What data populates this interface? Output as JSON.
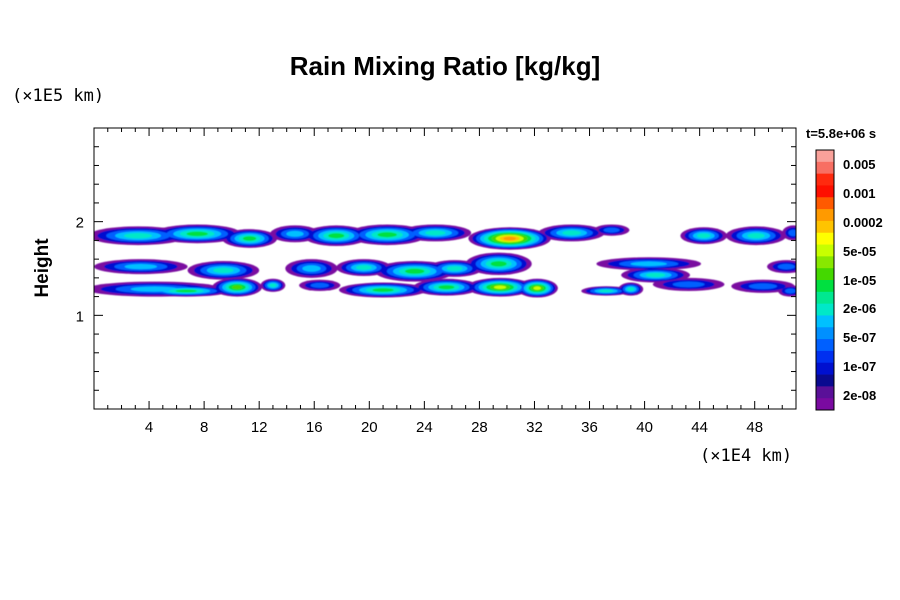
{
  "chart_data": {
    "type": "heatmap",
    "title": "Rain Mixing Ratio [kg/kg]",
    "ylabel": "Height",
    "y_unit_label": "(×1E5 km)",
    "x_unit_label": "(×1E4 km)",
    "time_label": "t=5.8e+06 s",
    "xlim": [
      0,
      51
    ],
    "ylim": [
      0,
      3
    ],
    "x_ticks": [
      4,
      8,
      12,
      16,
      20,
      24,
      28,
      32,
      36,
      40,
      44,
      48
    ],
    "y_ticks": [
      1,
      2
    ],
    "colorbar": {
      "labels": [
        "0.005",
        "0.001",
        "0.0002",
        "5e-05",
        "1e-05",
        "2e-06",
        "5e-07",
        "1e-07",
        "2e-08"
      ],
      "colors": [
        "#f9a19a",
        "#f86f63",
        "#ff2a0f",
        "#fe0f00",
        "#ff5a00",
        "#ff9a00",
        "#ffc400",
        "#ffff00",
        "#c8ff00",
        "#88e800",
        "#44d800",
        "#00e040",
        "#00e890",
        "#00e8c8",
        "#00c0ff",
        "#0090ff",
        "#0060ff",
        "#0030f0",
        "#0010d0",
        "#0a0a90",
        "#5a1098",
        "#7a0aa0"
      ]
    }
  }
}
